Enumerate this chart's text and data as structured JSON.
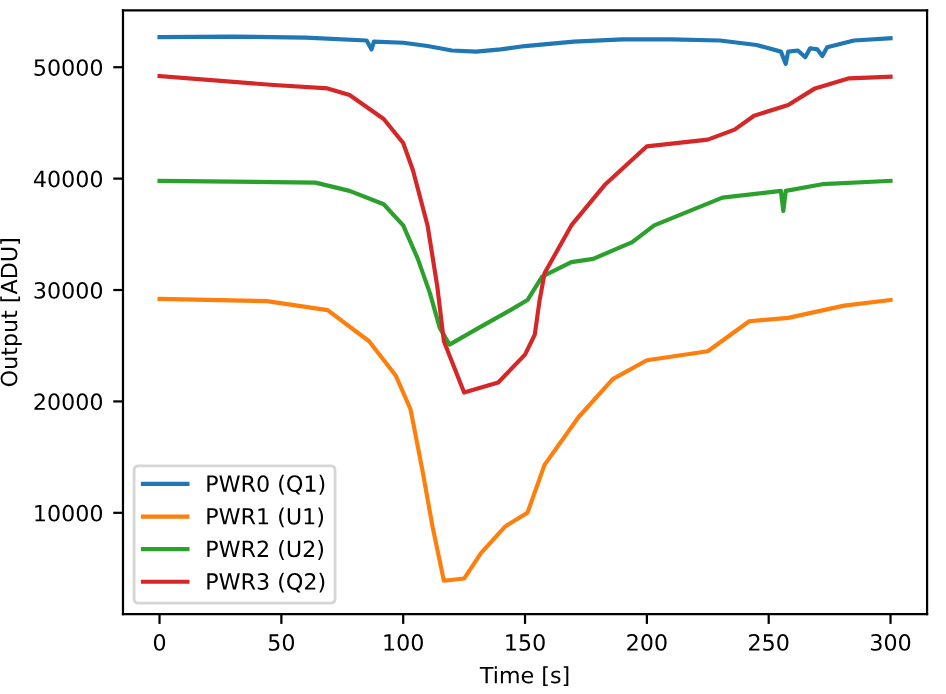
{
  "chart_data": {
    "type": "line",
    "xlabel": "Time [s]",
    "ylabel": "Output [ADU]",
    "xlim": [
      -15,
      315
    ],
    "ylim": [
      900,
      55100
    ],
    "xticks": [
      0,
      50,
      100,
      150,
      200,
      250,
      300
    ],
    "yticks": [
      10000,
      20000,
      30000,
      40000,
      50000
    ],
    "grid": false,
    "legend": "bottom left",
    "series": [
      {
        "name": "PWR0 (Q1)",
        "color": "#1f77b4",
        "x": [
          0,
          30,
          60,
          85,
          87,
          88,
          100,
          110,
          120,
          130,
          140,
          150,
          170,
          190,
          210,
          230,
          245,
          255,
          257,
          258,
          262,
          265,
          267,
          270,
          272,
          274,
          285,
          300
        ],
        "values": [
          52700,
          52750,
          52650,
          52400,
          51600,
          52300,
          52200,
          51900,
          51500,
          51400,
          51600,
          51900,
          52300,
          52500,
          52500,
          52400,
          52000,
          51400,
          50300,
          51400,
          51500,
          50900,
          51700,
          51600,
          51000,
          51800,
          52400,
          52600
        ]
      },
      {
        "name": "PWR1 (U1)",
        "color": "#ff7f0e",
        "x": [
          0,
          44,
          69,
          86,
          97,
          103,
          108,
          112,
          116.7,
          125,
          132,
          142,
          151,
          158,
          172,
          186,
          200,
          225,
          242,
          258,
          281,
          300
        ],
        "values": [
          29200,
          29000,
          28200,
          25400,
          22300,
          19300,
          13700,
          8800,
          3900,
          4100,
          6400,
          8800,
          10000,
          14300,
          18600,
          22000,
          23700,
          24500,
          27200,
          27500,
          28600,
          29100
        ]
      },
      {
        "name": "PWR2 (U2)",
        "color": "#2ca02c",
        "x": [
          0,
          64,
          78,
          92,
          100,
          106,
          111,
          115,
          119,
          131,
          144,
          151,
          157,
          169,
          178,
          194,
          203,
          231,
          255,
          256,
          257,
          272,
          300
        ],
        "values": [
          39800,
          39640,
          38900,
          37700,
          35800,
          32800,
          29700,
          26600,
          25100,
          26600,
          28200,
          29100,
          31200,
          32500,
          32800,
          34300,
          35800,
          38300,
          38900,
          37100,
          38900,
          39500,
          39800
        ]
      },
      {
        "name": "PWR3 (Q2)",
        "color": "#d62728",
        "x": [
          0,
          47,
          69,
          78,
          92,
          100,
          104,
          110,
          114,
          116.7,
          125,
          139,
          150,
          154,
          156,
          158,
          169,
          183,
          200,
          225,
          236,
          244,
          258,
          269,
          283,
          300
        ],
        "values": [
          49200,
          48400,
          48100,
          47500,
          45350,
          43200,
          40750,
          35800,
          30300,
          25400,
          20800,
          21700,
          24200,
          26000,
          29100,
          31500,
          35800,
          39500,
          42900,
          43500,
          44400,
          45650,
          46600,
          48100,
          49000,
          49150
        ]
      }
    ]
  }
}
